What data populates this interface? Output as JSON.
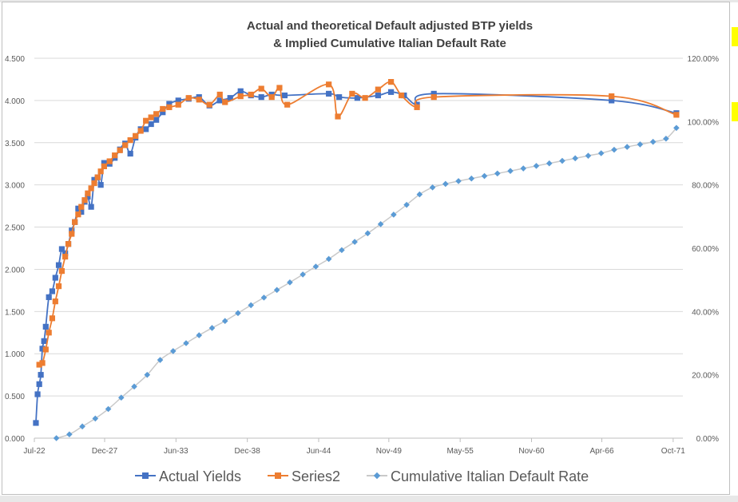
{
  "chart_data": {
    "type": "line",
    "title_lines": [
      "Actual and theoretical Default adjusted BTP yields",
      "& Implied Cumulative Italian Default Rate"
    ],
    "x_ticks": [
      "Jul-22",
      "Dec-27",
      "Jun-33",
      "Dec-38",
      "Jun-44",
      "Nov-49",
      "May-55",
      "Nov-60",
      "Apr-66",
      "Oct-71"
    ],
    "x_tick_years": [
      2022.5,
      2027.92,
      2033.42,
      2038.92,
      2044.42,
      2049.83,
      2055.33,
      2060.83,
      2066.25,
      2071.75
    ],
    "x_range": [
      2022.5,
      2072.5
    ],
    "y_left_ticks": [
      "0.000",
      "0.500",
      "1.000",
      "1.500",
      "2.000",
      "2.500",
      "3.000",
      "3.500",
      "4.000",
      "4.500"
    ],
    "y_left_range": [
      0,
      4.5
    ],
    "y_right_ticks": [
      "0.00%",
      "20.00%",
      "40.00%",
      "60.00%",
      "80.00%",
      "100.00%",
      "120.00%"
    ],
    "y_right_range": [
      0,
      1.2
    ],
    "series": [
      {
        "name": "Actual Yields",
        "color": "#4472c4",
        "marker": "square",
        "axis": "left",
        "points": [
          [
            2022.62,
            0.18
          ],
          [
            2022.75,
            0.52
          ],
          [
            2022.88,
            0.64
          ],
          [
            2023.0,
            0.75
          ],
          [
            2023.12,
            1.06
          ],
          [
            2023.25,
            1.15
          ],
          [
            2023.38,
            1.32
          ],
          [
            2023.62,
            1.67
          ],
          [
            2023.88,
            1.74
          ],
          [
            2024.12,
            1.9
          ],
          [
            2024.38,
            2.05
          ],
          [
            2024.62,
            2.24
          ],
          [
            2024.88,
            2.19
          ],
          [
            2025.12,
            2.3
          ],
          [
            2025.38,
            2.46
          ],
          [
            2025.62,
            2.56
          ],
          [
            2025.88,
            2.72
          ],
          [
            2026.12,
            2.68
          ],
          [
            2026.38,
            2.8
          ],
          [
            2026.62,
            2.86
          ],
          [
            2026.88,
            2.74
          ],
          [
            2027.12,
            3.06
          ],
          [
            2027.38,
            3.09
          ],
          [
            2027.62,
            3.0
          ],
          [
            2027.88,
            3.26
          ],
          [
            2028.3,
            3.25
          ],
          [
            2028.7,
            3.32
          ],
          [
            2029.1,
            3.42
          ],
          [
            2029.5,
            3.49
          ],
          [
            2029.9,
            3.37
          ],
          [
            2030.3,
            3.56
          ],
          [
            2030.7,
            3.66
          ],
          [
            2031.1,
            3.66
          ],
          [
            2031.5,
            3.72
          ],
          [
            2031.9,
            3.77
          ],
          [
            2032.4,
            3.86
          ],
          [
            2032.9,
            3.96
          ],
          [
            2033.6,
            4.0
          ],
          [
            2034.4,
            4.02
          ],
          [
            2035.2,
            4.04
          ],
          [
            2036.0,
            3.94
          ],
          [
            2036.8,
            4.0
          ],
          [
            2037.6,
            4.03
          ],
          [
            2038.4,
            4.11
          ],
          [
            2039.2,
            4.06
          ],
          [
            2040.0,
            4.04
          ],
          [
            2040.8,
            4.07
          ],
          [
            2041.8,
            4.06
          ],
          [
            2045.2,
            4.08
          ],
          [
            2046.0,
            4.04
          ],
          [
            2047.4,
            4.03
          ],
          [
            2049.0,
            4.06
          ],
          [
            2050.0,
            4.1
          ],
          [
            2051.0,
            4.06
          ],
          [
            2052.0,
            3.95
          ],
          [
            2053.3,
            4.08
          ],
          [
            2067.0,
            4.0
          ],
          [
            2072.0,
            3.85
          ]
        ]
      },
      {
        "name": "Series2",
        "color": "#ed7d31",
        "marker": "square",
        "axis": "left",
        "points": [
          [
            2022.88,
            0.87
          ],
          [
            2023.12,
            0.89
          ],
          [
            2023.38,
            1.05
          ],
          [
            2023.62,
            1.25
          ],
          [
            2023.88,
            1.42
          ],
          [
            2024.12,
            1.62
          ],
          [
            2024.38,
            1.8
          ],
          [
            2024.62,
            1.98
          ],
          [
            2024.88,
            2.15
          ],
          [
            2025.12,
            2.3
          ],
          [
            2025.38,
            2.42
          ],
          [
            2025.62,
            2.56
          ],
          [
            2025.88,
            2.65
          ],
          [
            2026.12,
            2.74
          ],
          [
            2026.38,
            2.82
          ],
          [
            2026.62,
            2.9
          ],
          [
            2026.88,
            2.96
          ],
          [
            2027.12,
            3.02
          ],
          [
            2027.38,
            3.09
          ],
          [
            2027.62,
            3.16
          ],
          [
            2027.88,
            3.22
          ],
          [
            2028.3,
            3.28
          ],
          [
            2028.7,
            3.35
          ],
          [
            2029.1,
            3.41
          ],
          [
            2029.5,
            3.47
          ],
          [
            2029.9,
            3.53
          ],
          [
            2030.3,
            3.58
          ],
          [
            2030.7,
            3.64
          ],
          [
            2031.1,
            3.76
          ],
          [
            2031.5,
            3.8
          ],
          [
            2031.9,
            3.84
          ],
          [
            2032.4,
            3.9
          ],
          [
            2032.9,
            3.92
          ],
          [
            2033.6,
            3.95
          ],
          [
            2034.4,
            4.03
          ],
          [
            2035.2,
            4.01
          ],
          [
            2036.0,
            3.95
          ],
          [
            2036.8,
            4.07
          ],
          [
            2037.2,
            3.98
          ],
          [
            2038.4,
            4.05
          ],
          [
            2039.2,
            4.07
          ],
          [
            2040.0,
            4.14
          ],
          [
            2040.8,
            4.04
          ],
          [
            2041.4,
            4.15
          ],
          [
            2042.0,
            3.95
          ],
          [
            2045.2,
            4.19
          ],
          [
            2045.9,
            3.81
          ],
          [
            2047.0,
            4.08
          ],
          [
            2048.0,
            4.03
          ],
          [
            2049.0,
            4.13
          ],
          [
            2050.0,
            4.22
          ],
          [
            2050.8,
            4.06
          ],
          [
            2052.0,
            3.92
          ],
          [
            2053.3,
            4.04
          ],
          [
            2067.0,
            4.05
          ],
          [
            2072.0,
            3.83
          ]
        ]
      },
      {
        "name": "Cumulative Italian Default Rate",
        "color": "#5b9bd5",
        "line_color": "#c9c9c9",
        "marker": "diamond",
        "axis": "right",
        "points": [
          [
            2024.2,
            0.0
          ],
          [
            2025.2,
            0.012
          ],
          [
            2026.2,
            0.037
          ],
          [
            2027.2,
            0.062
          ],
          [
            2028.2,
            0.092
          ],
          [
            2029.2,
            0.128
          ],
          [
            2030.2,
            0.163
          ],
          [
            2031.2,
            0.2
          ],
          [
            2032.2,
            0.247
          ],
          [
            2033.2,
            0.275
          ],
          [
            2034.2,
            0.3
          ],
          [
            2035.2,
            0.325
          ],
          [
            2036.2,
            0.348
          ],
          [
            2037.2,
            0.37
          ],
          [
            2038.2,
            0.395
          ],
          [
            2039.2,
            0.42
          ],
          [
            2040.2,
            0.444
          ],
          [
            2041.2,
            0.468
          ],
          [
            2042.2,
            0.492
          ],
          [
            2043.2,
            0.517
          ],
          [
            2044.2,
            0.542
          ],
          [
            2045.2,
            0.566
          ],
          [
            2046.2,
            0.594
          ],
          [
            2047.2,
            0.62
          ],
          [
            2048.2,
            0.647
          ],
          [
            2049.2,
            0.676
          ],
          [
            2050.2,
            0.706
          ],
          [
            2051.2,
            0.737
          ],
          [
            2052.2,
            0.77
          ],
          [
            2053.2,
            0.792
          ],
          [
            2054.2,
            0.803
          ],
          [
            2055.2,
            0.812
          ],
          [
            2056.2,
            0.82
          ],
          [
            2057.2,
            0.828
          ],
          [
            2058.2,
            0.836
          ],
          [
            2059.2,
            0.844
          ],
          [
            2060.2,
            0.852
          ],
          [
            2061.2,
            0.86
          ],
          [
            2062.2,
            0.868
          ],
          [
            2063.2,
            0.876
          ],
          [
            2064.2,
            0.884
          ],
          [
            2065.2,
            0.892
          ],
          [
            2066.2,
            0.9
          ],
          [
            2067.2,
            0.911
          ],
          [
            2068.2,
            0.92
          ],
          [
            2069.2,
            0.928
          ],
          [
            2070.2,
            0.936
          ],
          [
            2071.2,
            0.946
          ],
          [
            2072.0,
            0.98
          ]
        ]
      }
    ]
  }
}
